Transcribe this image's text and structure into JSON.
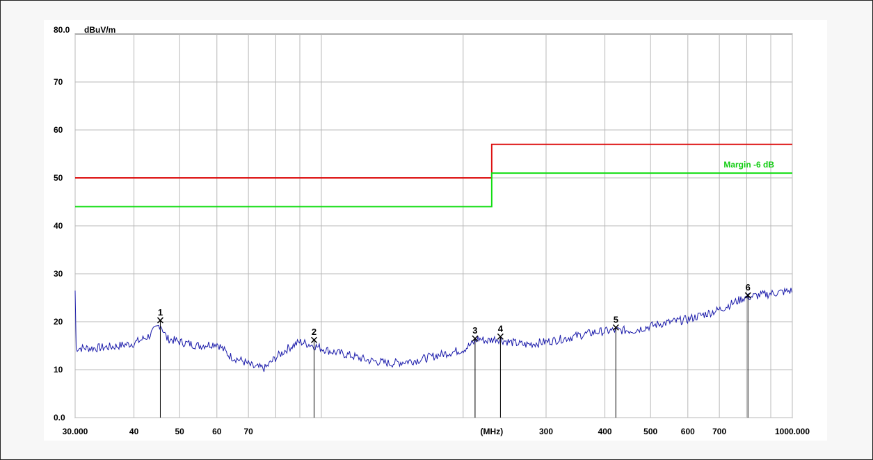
{
  "chart_data": {
    "type": "line",
    "ylabel_unit": "dBuV/m",
    "ylim": [
      0,
      80
    ],
    "y_top_label": "80.0",
    "y_ticks": [
      {
        "value": 70,
        "label": "70"
      },
      {
        "value": 60,
        "label": "60"
      },
      {
        "value": 50,
        "label": "50"
      },
      {
        "value": 40,
        "label": "40"
      },
      {
        "value": 30,
        "label": "30"
      },
      {
        "value": 20,
        "label": "20"
      },
      {
        "value": 10,
        "label": "10"
      },
      {
        "value": 0,
        "label": "0.0"
      }
    ],
    "x_scale": "log",
    "xlim": [
      30,
      1000
    ],
    "x_unit_label": "(MHz)",
    "x_unit_position": 230,
    "x_tick_labels": [
      {
        "value": 30,
        "label": "30.000"
      },
      {
        "value": 40,
        "label": "40"
      },
      {
        "value": 50,
        "label": "50"
      },
      {
        "value": 60,
        "label": "60"
      },
      {
        "value": 70,
        "label": "70"
      },
      {
        "value": 300,
        "label": "300"
      },
      {
        "value": 400,
        "label": "400"
      },
      {
        "value": 500,
        "label": "500"
      },
      {
        "value": 600,
        "label": "600"
      },
      {
        "value": 700,
        "label": "700"
      },
      {
        "value": 1000,
        "label": "1000.000"
      }
    ],
    "x_gridlines": [
      30,
      40,
      50,
      60,
      70,
      80,
      90,
      100,
      200,
      300,
      400,
      500,
      600,
      700,
      800,
      900,
      1000
    ],
    "grid": true,
    "limit_line": {
      "color": "#dd1111",
      "points": [
        [
          30,
          50
        ],
        [
          230,
          50
        ],
        [
          230,
          57
        ],
        [
          1000,
          57
        ]
      ]
    },
    "margin_line": {
      "name": "Margin -6 dB",
      "color": "#11dd11",
      "points": [
        [
          30,
          44
        ],
        [
          230,
          44
        ],
        [
          230,
          51
        ],
        [
          1000,
          51
        ]
      ]
    },
    "trace": {
      "color": "#1a1aaa",
      "points": [
        [
          30,
          14.5
        ],
        [
          33,
          14.5
        ],
        [
          36,
          14.8
        ],
        [
          40,
          15.5
        ],
        [
          43,
          17
        ],
        [
          45.5,
          19.5
        ],
        [
          47,
          16.5
        ],
        [
          50,
          15.8
        ],
        [
          55,
          15
        ],
        [
          60,
          15.5
        ],
        [
          64,
          12.8
        ],
        [
          68,
          11.8
        ],
        [
          72,
          10.5
        ],
        [
          76,
          10.3
        ],
        [
          80,
          12.5
        ],
        [
          85,
          14.5
        ],
        [
          90,
          15.8
        ],
        [
          95,
          15.2
        ],
        [
          105,
          13.8
        ],
        [
          115,
          13
        ],
        [
          125,
          12
        ],
        [
          140,
          11.3
        ],
        [
          160,
          12
        ],
        [
          180,
          13.2
        ],
        [
          200,
          14.2
        ],
        [
          210,
          15.5
        ],
        [
          215,
          16.5
        ],
        [
          225,
          16
        ],
        [
          235,
          16.5
        ],
        [
          250,
          15.8
        ],
        [
          270,
          15.2
        ],
        [
          300,
          15.8
        ],
        [
          340,
          16.8
        ],
        [
          380,
          17.8
        ],
        [
          420,
          18.2
        ],
        [
          460,
          18.2
        ],
        [
          520,
          19.5
        ],
        [
          600,
          20.5
        ],
        [
          700,
          22.5
        ],
        [
          790,
          25
        ],
        [
          850,
          25.5
        ],
        [
          920,
          26
        ],
        [
          1000,
          26.5
        ]
      ]
    },
    "markers": [
      {
        "label": "1",
        "x": 45.5,
        "y": 20.3
      },
      {
        "label": "2",
        "x": 96.5,
        "y": 16.2
      },
      {
        "label": "3",
        "x": 212,
        "y": 16.5
      },
      {
        "label": "4",
        "x": 240,
        "y": 16.9
      },
      {
        "label": "5",
        "x": 422,
        "y": 18.8
      },
      {
        "label": "6",
        "x": 805,
        "y": 25.5
      }
    ]
  }
}
